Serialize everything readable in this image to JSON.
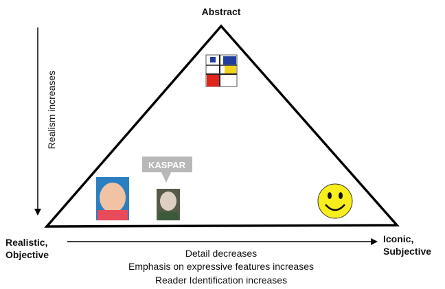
{
  "labels": {
    "apex": "Abstract",
    "left": [
      "Realistic,",
      "Objective"
    ],
    "right": [
      "Iconic,",
      "Subjective"
    ],
    "vertical_axis": "Realism increases",
    "bottom": [
      "Detail decreases",
      "Emphasis on expressive features increases",
      "Reader Identification increases"
    ],
    "callout": "KASPAR"
  }
}
